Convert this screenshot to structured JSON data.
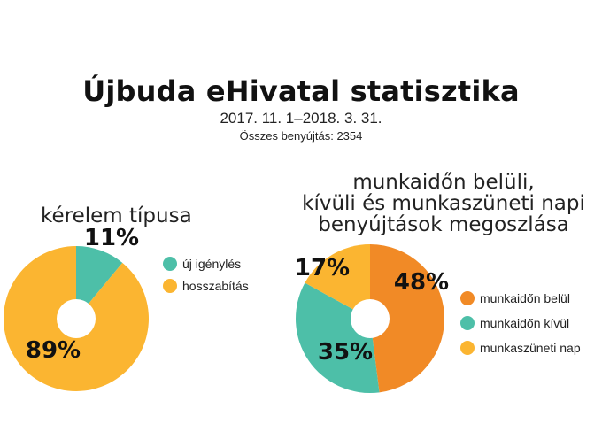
{
  "header": {
    "title": "Újbuda eHivatal statisztika",
    "period": "2017. 11. 1–2018. 3. 31.",
    "total": "Összes benyújtás: 2354"
  },
  "colors": {
    "teal": "#4dbfa8",
    "yellow": "#fbb531",
    "orange": "#f18a26"
  },
  "chart_data": [
    {
      "type": "pie",
      "title": "kérelem típusa",
      "categories": [
        "új igénylés",
        "hosszabítás"
      ],
      "values": [
        11,
        89
      ],
      "labels": [
        "11%",
        "89%"
      ],
      "colors": [
        "#4dbfa8",
        "#fbb531"
      ],
      "legend": "right"
    },
    {
      "type": "pie",
      "title_lines": [
        "munkaidőn belüli,",
        "kívüli és munkaszüneti napi",
        "benyújtások megoszlása"
      ],
      "categories": [
        "munkaidőn belül",
        "munkaidőn kívül",
        "munkaszüneti nap"
      ],
      "values": [
        48,
        35,
        17
      ],
      "labels": [
        "48%",
        "35%",
        "17%"
      ],
      "colors": [
        "#f18a26",
        "#4dbfa8",
        "#fbb531"
      ],
      "legend": "right"
    }
  ]
}
